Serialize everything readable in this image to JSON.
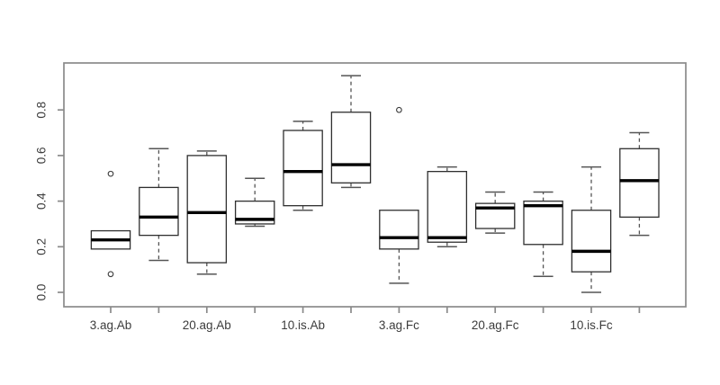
{
  "chart_data": {
    "type": "boxplot",
    "title": "",
    "xlabel": "",
    "ylabel": "",
    "ylim": [
      -0.06,
      1.0
    ],
    "grid": false,
    "yticks": [
      "0.0",
      "0.2",
      "0.4",
      "0.6",
      "0.8"
    ],
    "x_group_count": 12,
    "x_labels": [
      {
        "tick_index": 0,
        "label": "3.ag.Ab"
      },
      {
        "tick_index": 2,
        "label": "20.ag.Ab"
      },
      {
        "tick_index": 4,
        "label": "10.is.Ab"
      },
      {
        "tick_index": 6,
        "label": "3.ag.Fc"
      },
      {
        "tick_index": 8,
        "label": "20.ag.Fc"
      },
      {
        "tick_index": 10,
        "label": "10.is.Fc"
      }
    ],
    "groups": [
      {
        "position": 1,
        "whisker_low": null,
        "q1": 0.19,
        "median": 0.23,
        "q3": 0.27,
        "whisker_high": null,
        "outliers": [
          0.52,
          0.08
        ]
      },
      {
        "position": 2,
        "whisker_low": 0.14,
        "q1": 0.25,
        "median": 0.33,
        "q3": 0.46,
        "whisker_high": 0.63,
        "outliers": []
      },
      {
        "position": 3,
        "whisker_low": 0.08,
        "q1": 0.13,
        "median": 0.35,
        "q3": 0.6,
        "whisker_high": 0.62,
        "outliers": []
      },
      {
        "position": 4,
        "whisker_low": 0.29,
        "q1": 0.3,
        "median": 0.32,
        "q3": 0.4,
        "whisker_high": 0.5,
        "outliers": []
      },
      {
        "position": 5,
        "whisker_low": 0.36,
        "q1": 0.38,
        "median": 0.53,
        "q3": 0.71,
        "whisker_high": 0.75,
        "outliers": []
      },
      {
        "position": 6,
        "whisker_low": 0.46,
        "q1": 0.48,
        "median": 0.56,
        "q3": 0.79,
        "whisker_high": 0.95,
        "outliers": []
      },
      {
        "position": 7,
        "whisker_low": 0.04,
        "q1": 0.19,
        "median": 0.24,
        "q3": 0.36,
        "whisker_high": null,
        "outliers": [
          0.8
        ]
      },
      {
        "position": 8,
        "whisker_low": 0.2,
        "q1": 0.22,
        "median": 0.24,
        "q3": 0.53,
        "whisker_high": 0.55,
        "outliers": []
      },
      {
        "position": 9,
        "whisker_low": 0.26,
        "q1": 0.28,
        "median": 0.37,
        "q3": 0.39,
        "whisker_high": 0.44,
        "outliers": []
      },
      {
        "position": 10,
        "whisker_low": 0.07,
        "q1": 0.21,
        "median": 0.38,
        "q3": 0.4,
        "whisker_high": 0.44,
        "outliers": []
      },
      {
        "position": 11,
        "whisker_low": 0.0,
        "q1": 0.09,
        "median": 0.18,
        "q3": 0.36,
        "whisker_high": 0.55,
        "outliers": []
      },
      {
        "position": 12,
        "whisker_low": 0.25,
        "q1": 0.33,
        "median": 0.49,
        "q3": 0.63,
        "whisker_high": 0.7,
        "outliers": []
      }
    ],
    "style": {
      "background": "#ffffff",
      "frame_color": "#8a8a8a",
      "tick_color": "#8a8a8a",
      "text_color": "#3c3c3c",
      "box_border_color": "#2f2f2f",
      "box_fill": "#ffffff",
      "median_color": "#000000",
      "whisker_color": "#555555",
      "outlier_color": "#3c3c3c"
    }
  }
}
